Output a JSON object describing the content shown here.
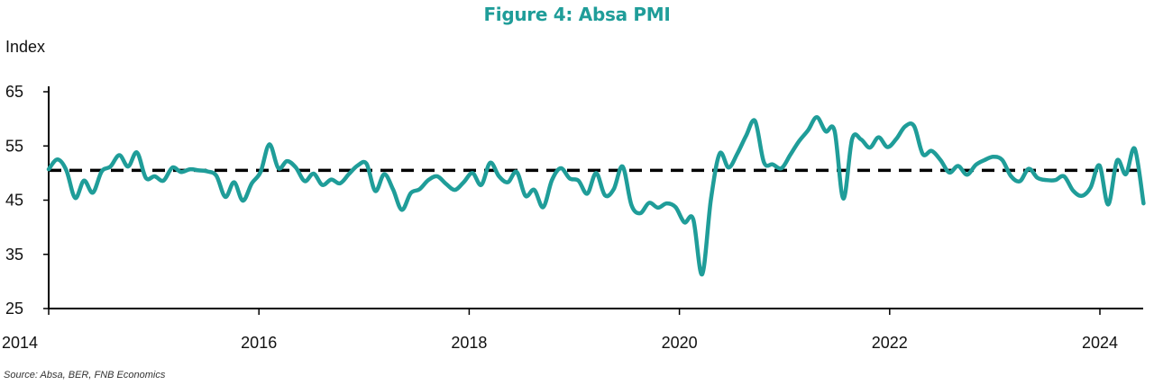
{
  "title": "Figure 4: Absa PMI",
  "source": "Source: Absa, BER, FNB Economics",
  "colors": {
    "line": "#1f9d99",
    "reference": "#000000",
    "title": "#1f9d99"
  },
  "chart_data": {
    "type": "line",
    "title": "Figure 4: Absa PMI",
    "ylabel": "Index",
    "xlabel": "",
    "ylim": [
      25,
      65
    ],
    "yticks": [
      25,
      35,
      45,
      55,
      65
    ],
    "xlim": [
      2014.0,
      2024.33
    ],
    "xticks": [
      2014,
      2016,
      2018,
      2020,
      2022,
      2024
    ],
    "grid": false,
    "legend": "none",
    "reference_line": {
      "y": 50.5,
      "style": "dashed"
    },
    "series": [
      {
        "x": [
          2014.0,
          2014.083,
          2014.167,
          2014.25,
          2014.333,
          2014.417,
          2014.5,
          2014.583,
          2014.667,
          2014.75,
          2014.833,
          2014.917,
          2015.0,
          2015.083,
          2015.167,
          2015.25,
          2015.333,
          2015.417,
          2015.5,
          2015.583,
          2015.667,
          2015.75,
          2015.833,
          2015.917,
          2016.0,
          2016.083,
          2016.167,
          2016.25,
          2016.333,
          2016.417,
          2016.5,
          2016.583,
          2016.667,
          2016.75,
          2016.833,
          2016.917,
          2017.0,
          2017.083,
          2017.167,
          2017.25,
          2017.333,
          2017.417,
          2017.5,
          2017.583,
          2017.667,
          2017.75,
          2017.833,
          2017.917,
          2018.0,
          2018.083,
          2018.167,
          2018.25,
          2018.333,
          2018.417,
          2018.5,
          2018.583,
          2018.667,
          2018.75,
          2018.833,
          2018.917,
          2019.0,
          2019.083,
          2019.167,
          2019.25,
          2019.333,
          2019.417,
          2019.5,
          2019.583,
          2019.667,
          2019.75,
          2019.833,
          2019.917,
          2020.0,
          2020.083,
          2020.167,
          2020.25,
          2020.333,
          2020.417,
          2020.5,
          2020.583,
          2020.667,
          2020.75,
          2020.833,
          2020.917,
          2021.0,
          2021.083,
          2021.167,
          2021.25,
          2021.333,
          2021.417,
          2021.5,
          2021.583,
          2021.667,
          2021.75,
          2021.833,
          2021.917,
          2022.0,
          2022.083,
          2022.167,
          2022.25,
          2022.333,
          2022.417,
          2022.5,
          2022.583,
          2022.667,
          2022.75,
          2022.833,
          2022.917,
          2023.0,
          2023.083,
          2023.167,
          2023.25,
          2023.333,
          2023.417,
          2023.5,
          2023.583,
          2023.667,
          2023.75,
          2023.833,
          2023.917,
          2024.0,
          2024.083,
          2024.167,
          2024.25,
          2024.333
        ],
        "y": [
          50.7,
          52.5,
          50.5,
          45.4,
          48.6,
          46.4,
          50.3,
          51.2,
          53.3,
          51.2,
          53.8,
          49.1,
          49.4,
          48.6,
          51.0,
          50.2,
          50.7,
          50.5,
          50.3,
          49.5,
          45.6,
          48.3,
          44.9,
          48.1,
          50.2,
          55.3,
          50.9,
          52.2,
          51.0,
          48.5,
          49.9,
          47.8,
          48.8,
          48.1,
          49.8,
          51.4,
          51.7,
          46.7,
          49.8,
          47.0,
          43.2,
          46.3,
          47.0,
          48.7,
          49.4,
          48.0,
          46.9,
          48.3,
          50.0,
          47.8,
          51.9,
          49.4,
          48.3,
          50.2,
          45.8,
          46.9,
          43.7,
          48.7,
          50.9,
          49.0,
          48.6,
          46.2,
          50.0,
          45.9,
          47.0,
          51.2,
          44.1,
          42.6,
          44.5,
          43.6,
          44.4,
          43.7,
          40.9,
          41.5,
          31.3,
          45.1,
          53.6,
          51.0,
          53.6,
          56.9,
          59.6,
          52.0,
          51.6,
          50.9,
          53.4,
          55.9,
          57.9,
          60.3,
          57.7,
          57.8,
          45.3,
          56.3,
          56.2,
          54.7,
          56.6,
          54.8,
          56.3,
          58.6,
          58.7,
          53.5,
          54.1,
          52.4,
          50.1,
          51.3,
          49.7,
          51.5,
          52.4,
          53.0,
          52.4,
          49.4,
          48.5,
          50.8,
          49.1,
          48.7,
          48.7,
          49.4,
          46.8,
          45.8,
          47.3,
          51.4,
          44.2,
          52.3,
          49.8,
          54.5,
          44.4
        ]
      }
    ]
  }
}
